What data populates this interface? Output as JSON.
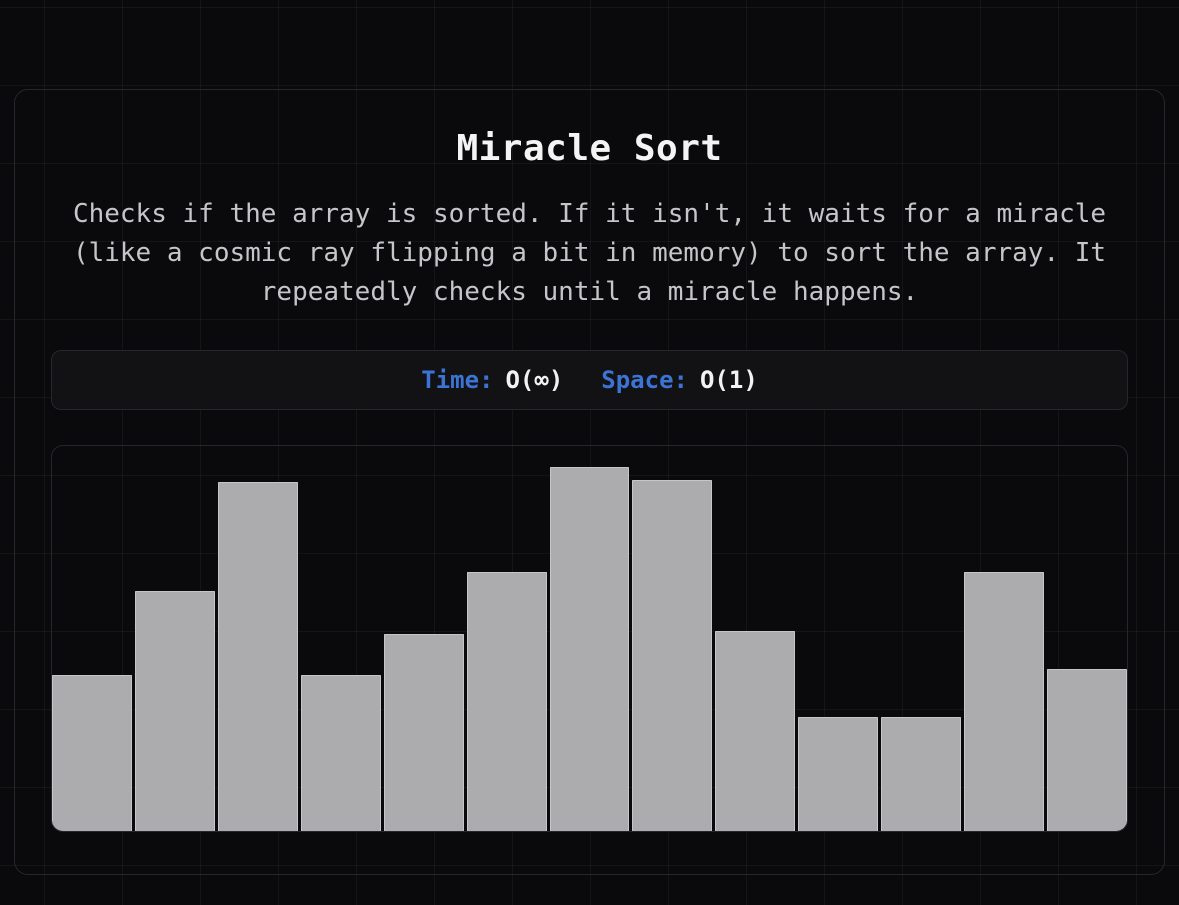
{
  "card": {
    "title": "Miracle Sort",
    "description": "Checks if the array is sorted. If it isn't, it waits for a miracle (like a cosmic ray flipping a bit in memory) to sort the array. It repeatedly checks until a miracle happens.",
    "description_lines": [
      "Checks if the array is sorted. If it isn't, it waits for a miracle",
      "(like a cosmic ray flipping a bit in memory) to sort the array. It",
      "repeatedly checks until a miracle happens."
    ]
  },
  "complexity": {
    "time_label": "Time:",
    "time_value": "O(∞)",
    "space_label": "Space:",
    "space_value": "O(1)"
  },
  "chart_data": {
    "type": "bar",
    "title": "Miracle Sort array state visualization",
    "values": [
      41,
      62,
      91,
      41,
      51,
      67,
      95,
      91,
      52,
      30,
      30,
      67,
      42
    ],
    "heights_pct": [
      40.5,
      62.3,
      90.6,
      40.5,
      51.2,
      67.3,
      94.5,
      91.2,
      51.9,
      29.6,
      29.6,
      67.3,
      42.1
    ],
    "bar_count": 13,
    "xlabel": "",
    "ylabel": "",
    "ylim": [
      0,
      100
    ],
    "grid": false,
    "legend": false,
    "bar_color": "#acacaf",
    "bar_border_color": "#c6c6c9"
  },
  "colors": {
    "page_background": "#0a0a0c",
    "grid_line": "rgba(255,255,255,0.045)",
    "panel_border": "#26262c",
    "complexity_panel_background": "#121215",
    "accent_blue": "#3b74d4",
    "title_text": "#f4f4f5",
    "description_text": "#c6c6ca"
  }
}
